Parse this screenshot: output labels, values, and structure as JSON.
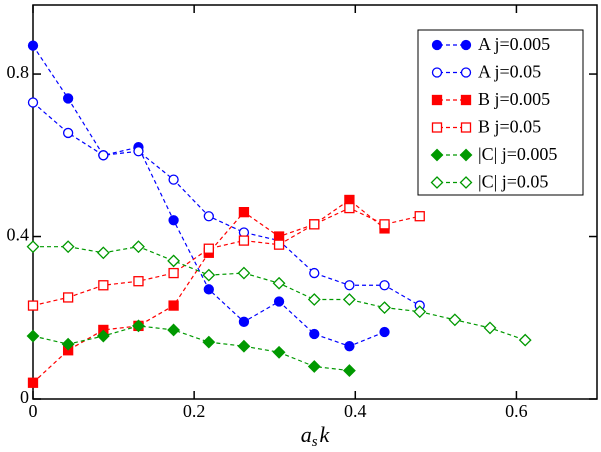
{
  "chart_data": {
    "type": "line",
    "xlabel": [
      "a",
      "s",
      "k"
    ],
    "x": [
      0,
      0.0436,
      0.0873,
      0.1309,
      0.1745,
      0.2182,
      0.2618,
      0.3054,
      0.3491,
      0.3927,
      0.4363,
      0.48,
      0.5236,
      0.5672,
      0.6109
    ],
    "xlim": [
      0,
      0.7
    ],
    "xticks": [
      0,
      0.2,
      0.4,
      0.6
    ],
    "ylim": [
      0,
      0.97
    ],
    "yticks": [
      0,
      0.4,
      0.8
    ],
    "legend": "upper right",
    "series": [
      {
        "name": "A j=0.005",
        "color": "#0000ff",
        "marker": "circle",
        "filled": true,
        "values": [
          0.87,
          0.74,
          0.6,
          0.62,
          0.44,
          0.27,
          0.19,
          0.24,
          0.16,
          0.13,
          0.165,
          null,
          null,
          null,
          null
        ]
      },
      {
        "name": "A j=0.05",
        "color": "#0000ff",
        "marker": "circle",
        "filled": false,
        "values": [
          0.73,
          0.655,
          0.6,
          0.61,
          0.54,
          0.45,
          0.41,
          0.39,
          0.31,
          0.28,
          0.28,
          0.23,
          null,
          null,
          null
        ]
      },
      {
        "name": "B j=0.005",
        "color": "#ff0000",
        "marker": "square",
        "filled": true,
        "values": [
          0.04,
          0.12,
          0.17,
          0.18,
          0.23,
          0.36,
          0.46,
          0.4,
          0.43,
          0.49,
          0.42,
          null,
          null,
          null,
          null
        ]
      },
      {
        "name": "B j=0.05",
        "color": "#ff0000",
        "marker": "square",
        "filled": false,
        "values": [
          0.23,
          0.25,
          0.28,
          0.29,
          0.31,
          0.37,
          0.39,
          0.38,
          0.43,
          0.47,
          0.43,
          0.45,
          null,
          null,
          null
        ]
      },
      {
        "name": "|C| j=0.005",
        "color": "#009900",
        "marker": "diamond",
        "filled": true,
        "values": [
          0.155,
          0.135,
          0.155,
          0.18,
          0.17,
          0.14,
          0.13,
          0.115,
          0.08,
          0.07,
          null,
          null,
          null,
          null,
          null
        ]
      },
      {
        "name": "|C| j=0.05",
        "color": "#009900",
        "marker": "diamond",
        "filled": false,
        "values": [
          0.375,
          0.375,
          0.36,
          0.375,
          0.34,
          0.305,
          0.31,
          0.285,
          0.245,
          0.245,
          0.225,
          0.215,
          0.195,
          0.175,
          0.145
        ]
      }
    ]
  }
}
